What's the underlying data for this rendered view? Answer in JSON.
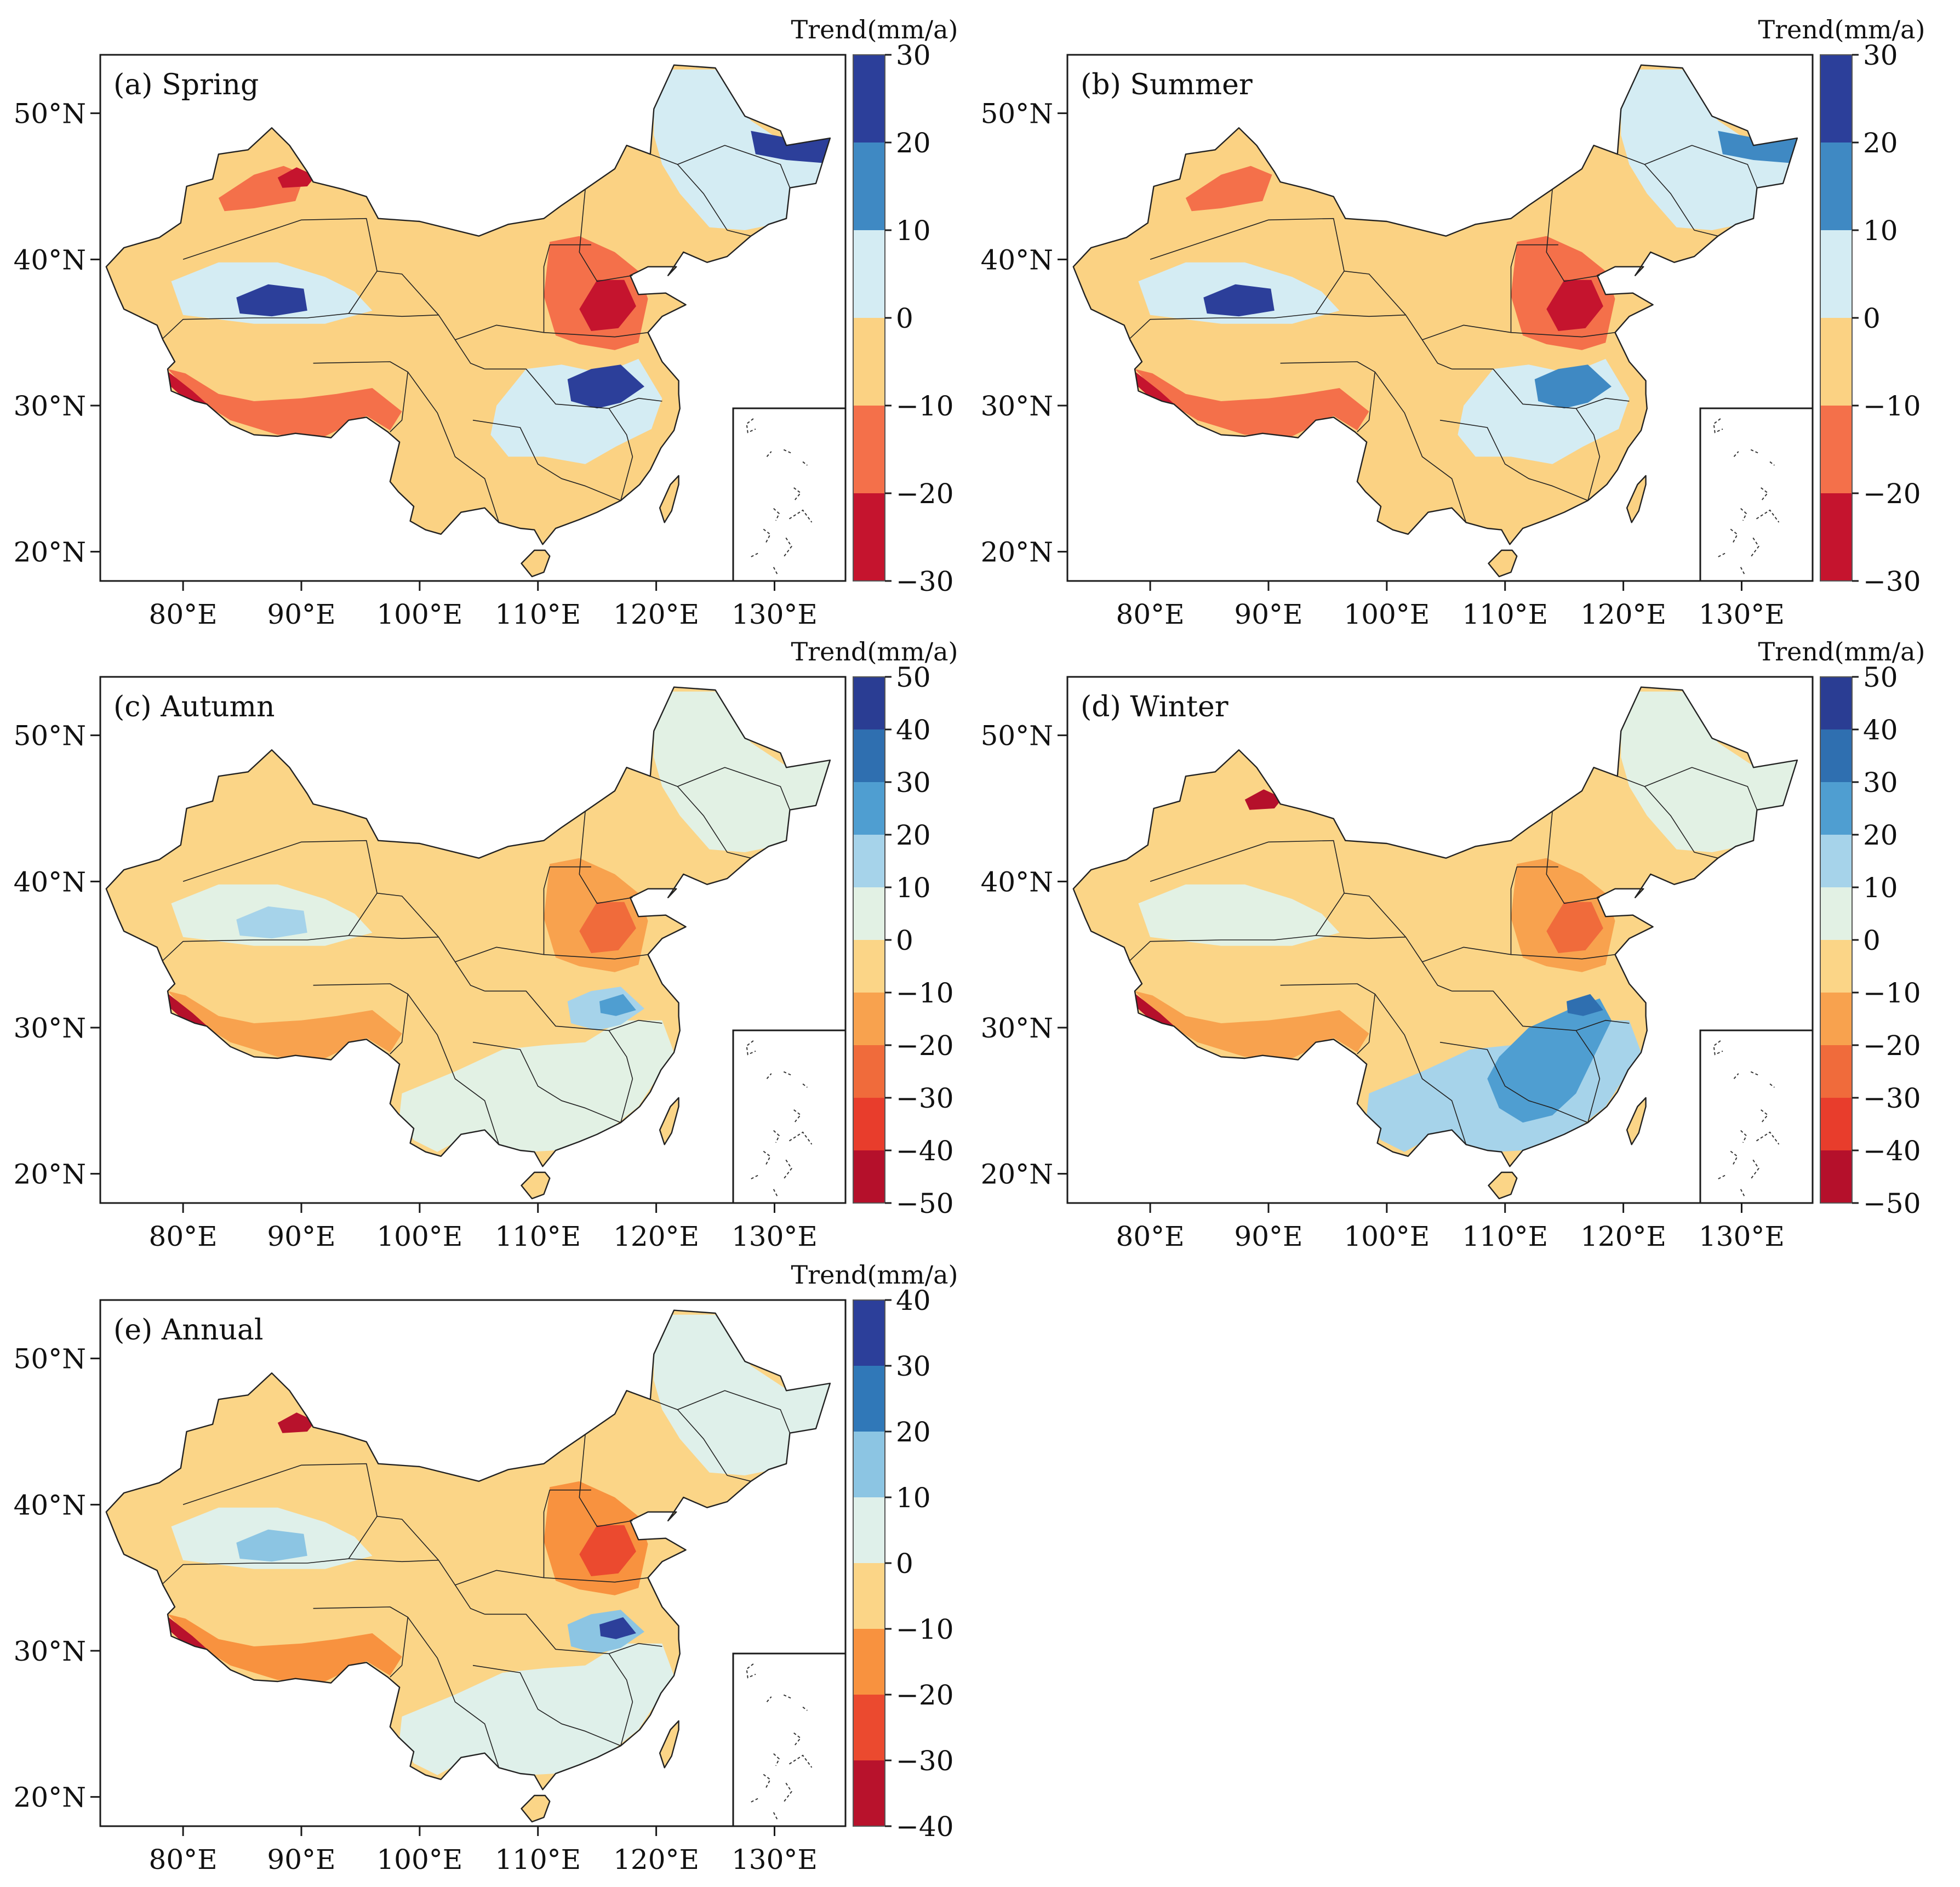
{
  "figure_layout": "2 columns x 3 rows, five map panels",
  "colors": {
    "frame": "#1a1a1a",
    "border": "#222222",
    "land_fill": "#fbfbfb"
  },
  "chart_data": [
    {
      "type": "heatmap",
      "panel": "a",
      "title": "(a) Spring",
      "colorbar_title": "Trend(mm/a)",
      "colorbar_ticks": [
        "30",
        "20",
        "10",
        "0",
        "−10",
        "−20",
        "−30"
      ],
      "bins": [
        30,
        20,
        10,
        0,
        -10,
        -20,
        -30
      ],
      "colorbar_colors": [
        "#2c3f9a",
        "#3f89c3",
        "#d4ecf3",
        "#fbd283",
        "#f4704a",
        "#c5142e"
      ],
      "lat_ticks": [
        "50°N",
        "40°N",
        "30°N",
        "20°N"
      ],
      "lat_values": [
        50,
        40,
        30,
        20
      ],
      "lon_ticks": [
        "80°E",
        "90°E",
        "100°E",
        "110°E",
        "120°E",
        "130°E"
      ],
      "lon_values": [
        80,
        90,
        100,
        110,
        120,
        130
      ],
      "xlim": [
        73,
        136
      ],
      "ylim": [
        18,
        54
      ],
      "regions": [
        {
          "name": "background",
          "trend": -5
        },
        {
          "name": "northeast",
          "trend": 4
        },
        {
          "name": "far northeast",
          "trend": 22
        },
        {
          "name": "tarim basin",
          "trend": 4
        },
        {
          "name": "tarim core",
          "trend": 25
        },
        {
          "name": "yangtze",
          "trend": 5
        },
        {
          "name": "yangtze core",
          "trend": 22
        },
        {
          "name": "north china plain",
          "trend": -15
        },
        {
          "name": "north china core",
          "trend": -25
        },
        {
          "name": "himalaya south",
          "trend": -15
        },
        {
          "name": "himalaya core",
          "trend": -25
        },
        {
          "name": "north xinjiang",
          "trend": -15
        },
        {
          "name": "north xinjiang core",
          "trend": -25
        }
      ]
    },
    {
      "type": "heatmap",
      "panel": "b",
      "title": "(b) Summer",
      "colorbar_title": "Trend(mm/a)",
      "colorbar_ticks": [
        "30",
        "20",
        "10",
        "0",
        "−10",
        "−20",
        "−30"
      ],
      "bins": [
        30,
        20,
        10,
        0,
        -10,
        -20,
        -30
      ],
      "colorbar_colors": [
        "#2c3f9a",
        "#3f89c3",
        "#d4ecf3",
        "#fbd283",
        "#f4704a",
        "#c5142e"
      ],
      "lat_ticks": [
        "50°N",
        "40°N",
        "30°N",
        "20°N"
      ],
      "lat_values": [
        50,
        40,
        30,
        20
      ],
      "lon_ticks": [
        "80°E",
        "90°E",
        "100°E",
        "110°E",
        "120°E",
        "130°E"
      ],
      "lon_values": [
        80,
        90,
        100,
        110,
        120,
        130
      ],
      "xlim": [
        73,
        136
      ],
      "ylim": [
        18,
        54
      ],
      "regions": [
        {
          "name": "background",
          "trend": -5
        },
        {
          "name": "northeast",
          "trend": 4
        },
        {
          "name": "far northeast",
          "trend": 15
        },
        {
          "name": "tarim basin",
          "trend": 4
        },
        {
          "name": "tarim core",
          "trend": 25
        },
        {
          "name": "yangtze",
          "trend": 5
        },
        {
          "name": "yangtze core",
          "trend": 15
        },
        {
          "name": "north china plain",
          "trend": -15
        },
        {
          "name": "north china core",
          "trend": -25
        },
        {
          "name": "himalaya south",
          "trend": -15
        },
        {
          "name": "himalaya core",
          "trend": -25
        },
        {
          "name": "north xinjiang",
          "trend": -15
        }
      ]
    },
    {
      "type": "heatmap",
      "panel": "c",
      "title": "(c) Autumn",
      "colorbar_title": "Trend(mm/a)",
      "colorbar_ticks": [
        "50",
        "40",
        "30",
        "20",
        "10",
        "0",
        "−10",
        "−20",
        "−30",
        "−40",
        "−50"
      ],
      "bins": [
        50,
        40,
        30,
        20,
        10,
        0,
        -10,
        -20,
        -30,
        -40,
        -50
      ],
      "colorbar_colors": [
        "#2a3d93",
        "#2f6fb0",
        "#4f9ed1",
        "#a6d3ea",
        "#e2f1e4",
        "#fbd587",
        "#f8a24e",
        "#f06b3b",
        "#e83d2c",
        "#b5102b"
      ],
      "lat_ticks": [
        "50°N",
        "40°N",
        "30°N",
        "20°N"
      ],
      "lat_values": [
        50,
        40,
        30,
        20
      ],
      "lon_ticks": [
        "80°E",
        "90°E",
        "100°E",
        "110°E",
        "120°E",
        "130°E"
      ],
      "lon_values": [
        80,
        90,
        100,
        110,
        120,
        130
      ],
      "xlim": [
        73,
        136
      ],
      "ylim": [
        18,
        54
      ],
      "regions": [
        {
          "name": "background",
          "trend": -5
        },
        {
          "name": "northeast",
          "trend": 5
        },
        {
          "name": "tarim basin",
          "trend": 5
        },
        {
          "name": "tarim core",
          "trend": 15
        },
        {
          "name": "south china",
          "trend": 5
        },
        {
          "name": "yangtze core",
          "trend": 15
        },
        {
          "name": "yangtze peak",
          "trend": 25
        },
        {
          "name": "north china plain",
          "trend": -15
        },
        {
          "name": "north china core",
          "trend": -25
        },
        {
          "name": "himalaya south",
          "trend": -15
        },
        {
          "name": "himalaya core",
          "trend": -45
        }
      ]
    },
    {
      "type": "heatmap",
      "panel": "d",
      "title": "(d) Winter",
      "colorbar_title": "Trend(mm/a)",
      "colorbar_ticks": [
        "50",
        "40",
        "30",
        "20",
        "10",
        "0",
        "−10",
        "−20",
        "−30",
        "−40",
        "−50"
      ],
      "bins": [
        50,
        40,
        30,
        20,
        10,
        0,
        -10,
        -20,
        -30,
        -40,
        -50
      ],
      "colorbar_colors": [
        "#2a3d93",
        "#2f6fb0",
        "#4f9ed1",
        "#a6d3ea",
        "#e2f1e4",
        "#fbd587",
        "#f8a24e",
        "#f06b3b",
        "#e83d2c",
        "#b5102b"
      ],
      "lat_ticks": [
        "50°N",
        "40°N",
        "30°N",
        "20°N"
      ],
      "lat_values": [
        50,
        40,
        30,
        20
      ],
      "lon_ticks": [
        "80°E",
        "90°E",
        "100°E",
        "110°E",
        "120°E",
        "130°E"
      ],
      "lon_values": [
        80,
        90,
        100,
        110,
        120,
        130
      ],
      "xlim": [
        73,
        136
      ],
      "ylim": [
        18,
        54
      ],
      "regions": [
        {
          "name": "background",
          "trend": -5
        },
        {
          "name": "northeast",
          "trend": 5
        },
        {
          "name": "tarim basin",
          "trend": 5
        },
        {
          "name": "south china",
          "trend": 15
        },
        {
          "name": "southeast core",
          "trend": 25
        },
        {
          "name": "yangtze peak",
          "trend": 35
        },
        {
          "name": "north china plain",
          "trend": -15
        },
        {
          "name": "north china core",
          "trend": -25
        },
        {
          "name": "himalaya south",
          "trend": -15
        },
        {
          "name": "himalaya core",
          "trend": -45
        },
        {
          "name": "north xinjiang core",
          "trend": -45
        }
      ]
    },
    {
      "type": "heatmap",
      "panel": "e",
      "title": "(e) Annual",
      "colorbar_title": "Trend(mm/a)",
      "colorbar_ticks": [
        "40",
        "30",
        "20",
        "10",
        "0",
        "−10",
        "−20",
        "−30",
        "−40"
      ],
      "bins": [
        40,
        30,
        20,
        10,
        0,
        -10,
        -20,
        -30,
        -40
      ],
      "colorbar_colors": [
        "#2c3f9a",
        "#3078b8",
        "#8cc5e3",
        "#dff0ea",
        "#fbd587",
        "#f8923f",
        "#eb4a2f",
        "#b8122c"
      ],
      "lat_ticks": [
        "50°N",
        "40°N",
        "30°N",
        "20°N"
      ],
      "lat_values": [
        50,
        40,
        30,
        20
      ],
      "lon_ticks": [
        "80°E",
        "90°E",
        "100°E",
        "110°E",
        "120°E",
        "130°E"
      ],
      "lon_values": [
        80,
        90,
        100,
        110,
        120,
        130
      ],
      "xlim": [
        73,
        136
      ],
      "ylim": [
        18,
        54
      ],
      "regions": [
        {
          "name": "background",
          "trend": -5
        },
        {
          "name": "northeast",
          "trend": 5
        },
        {
          "name": "tarim basin",
          "trend": 5
        },
        {
          "name": "tarim core",
          "trend": 15
        },
        {
          "name": "south china",
          "trend": 5
        },
        {
          "name": "yangtze core",
          "trend": 15
        },
        {
          "name": "yangtze peak",
          "trend": 35
        },
        {
          "name": "north china plain",
          "trend": -15
        },
        {
          "name": "north china core",
          "trend": -25
        },
        {
          "name": "himalaya south",
          "trend": -15
        },
        {
          "name": "himalaya core",
          "trend": -35
        },
        {
          "name": "north xinjiang core",
          "trend": -35
        }
      ]
    }
  ]
}
